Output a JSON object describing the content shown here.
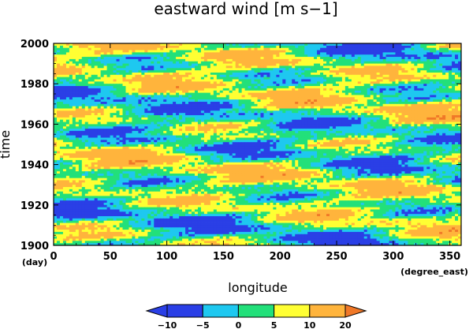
{
  "chart_data": {
    "type": "heatmap",
    "title": "eastward wind [m s−1]",
    "xlabel": "longitude",
    "ylabel": "time",
    "x_unit": "(degree_east)",
    "y_unit": "(day)",
    "xlim": [
      0,
      360
    ],
    "ylim": [
      1900,
      2000
    ],
    "x_ticks": [
      "0",
      "50",
      "100",
      "150",
      "200",
      "250",
      "300",
      "350"
    ],
    "y_ticks": [
      "1900",
      "1920",
      "1940",
      "1960",
      "1980",
      "2000"
    ],
    "x_tick_values": [
      0,
      50,
      100,
      150,
      200,
      250,
      300,
      350
    ],
    "y_tick_values": [
      1900,
      1920,
      1940,
      1960,
      1980,
      2000
    ],
    "colorbar": {
      "levels": [
        -10,
        -5,
        0,
        5,
        10,
        20
      ],
      "tick_labels": [
        "−10",
        "−5",
        "0",
        "5",
        "10",
        "20"
      ],
      "colors": [
        "#2a3fe6",
        "#1ec8f0",
        "#22e07a",
        "#ffff33",
        "#ffb43c"
      ],
      "under_color": "#2a3fe6",
      "over_color": "#f07828",
      "extend": "both"
    }
  }
}
